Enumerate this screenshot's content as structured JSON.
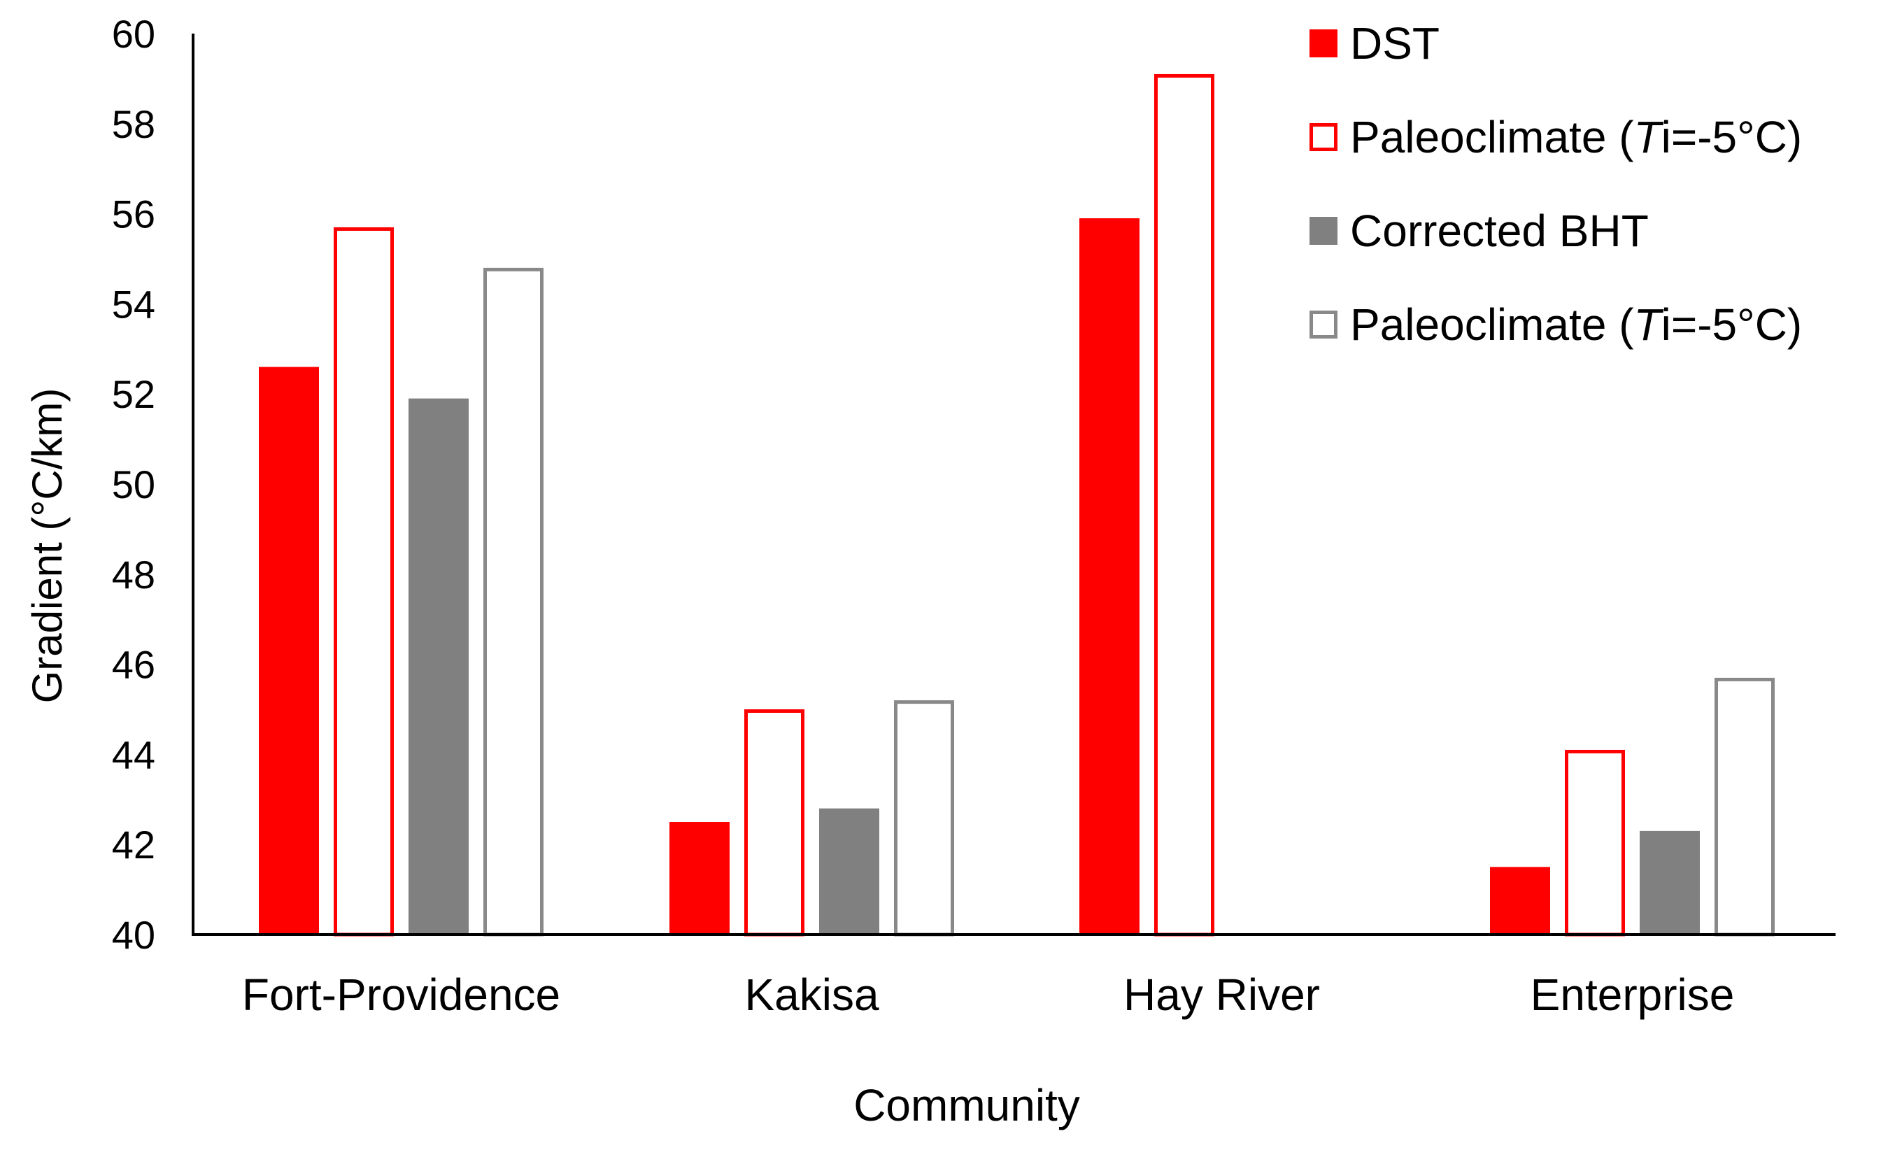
{
  "chart_data": {
    "type": "bar",
    "title": "",
    "xlabel": "Community",
    "ylabel": "Gradient (°C/km)",
    "ylim": [
      40,
      60
    ],
    "yticks": [
      40,
      42,
      44,
      46,
      48,
      50,
      52,
      54,
      56,
      58,
      60
    ],
    "grid": false,
    "legend_position": "top-right",
    "categories": [
      "Fort-Providence",
      "Kakisa",
      "Hay River",
      "Enterprise"
    ],
    "series": [
      {
        "name": "DST",
        "label_parts": [
          "DST"
        ],
        "style": "filled",
        "color": "#ff0000",
        "values": [
          52.6,
          42.5,
          55.9,
          41.5
        ]
      },
      {
        "name": "Paleoclimate (Ti=-5°C)",
        "label_parts": [
          "Paleoclimate (",
          "T",
          "i=-5°C)"
        ],
        "style": "outline",
        "color": "#ff0000",
        "values": [
          55.7,
          45.0,
          59.1,
          44.1
        ]
      },
      {
        "name": " Corrected BHT",
        "label_parts": [
          " Corrected BHT"
        ],
        "style": "filled",
        "color": "#808080",
        "values": [
          51.9,
          42.8,
          null,
          42.3
        ]
      },
      {
        "name": "Paleoclimate (Ti=-5°C)",
        "label_parts": [
          "Paleoclimate (",
          "T",
          "i=-5°C)"
        ],
        "style": "outline",
        "color": "#898989",
        "values": [
          54.8,
          45.2,
          null,
          45.7
        ]
      }
    ]
  }
}
